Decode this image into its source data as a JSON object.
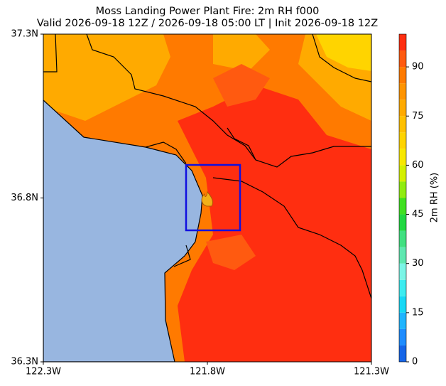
{
  "chart_data": {
    "type": "map",
    "title": "Moss Landing Power Plant Fire: 2m RH f000",
    "subtitle": "Valid 2026-09-18 12Z / 2026-09-18 05:00 LT | Init 2026-09-18 12Z",
    "xlim": [
      -122.3,
      -121.3
    ],
    "xticks": [
      {
        "value": -122.3,
        "label": "122.3W"
      },
      {
        "value": -121.8,
        "label": "121.8W"
      },
      {
        "value": -121.3,
        "label": "121.3W"
      }
    ],
    "ylim": [
      36.3,
      37.3
    ],
    "yticks": [
      {
        "value": 36.3,
        "label": "36.3N"
      },
      {
        "value": 36.8,
        "label": "36.8N"
      },
      {
        "value": 37.3,
        "label": "37.3N"
      }
    ],
    "colorbar": {
      "label": "2m RH (%)",
      "lim": [
        0,
        100
      ],
      "levels": [
        0,
        5,
        10,
        15,
        20,
        25,
        30,
        35,
        40,
        45,
        50,
        55,
        60,
        65,
        70,
        75,
        80,
        85,
        90,
        95,
        100
      ],
      "colors": [
        "#1565e8",
        "#1e8cff",
        "#1fb4ff",
        "#17d8f5",
        "#3cecf0",
        "#7af5e6",
        "#5ee8b0",
        "#40e080",
        "#20d840",
        "#40e020",
        "#90ec10",
        "#d4f000",
        "#f8e800",
        "#ffd400",
        "#ffc000",
        "#ffaa00",
        "#ff9400",
        "#ff7a00",
        "#ff5a10",
        "#ff2e10"
      ],
      "ticks": [
        0,
        15,
        30,
        45,
        60,
        75,
        90
      ]
    }
  }
}
